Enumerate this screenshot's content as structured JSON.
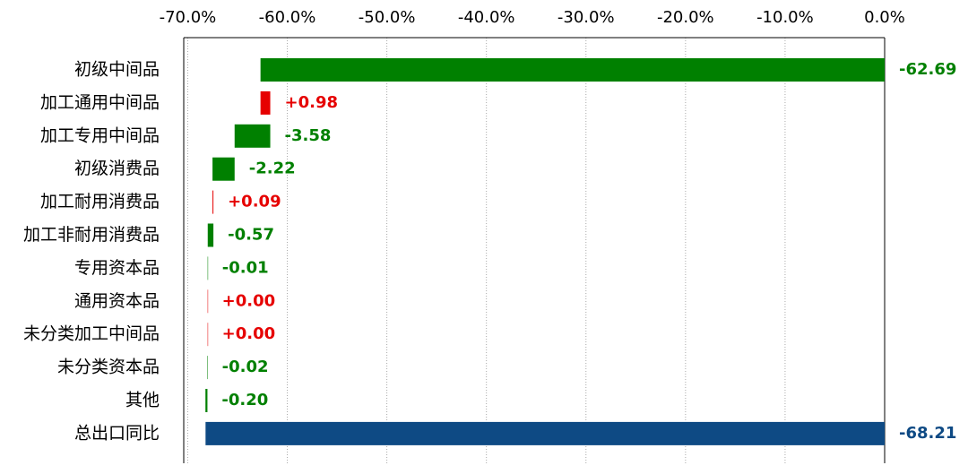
{
  "chart_data": {
    "type": "waterfall",
    "categories": [
      "初级中间品",
      "加工通用中间品",
      "加工专用中间品",
      "初级消费品",
      "加工耐用消费品",
      "加工非耐用消费品",
      "专用资本品",
      "通用资本品",
      "未分类加工中间品",
      "未分类资本品",
      "其他"
    ],
    "values": [
      -62.69,
      0.98,
      -3.58,
      -2.22,
      0.09,
      -0.57,
      -0.01,
      0.0,
      0.0,
      -0.02,
      -0.2
    ],
    "value_labels": [
      "-62.69",
      "+0.98",
      "-3.58",
      "-2.22",
      "+0.09",
      "-0.57",
      "-0.01",
      "+0.00",
      "+0.00",
      "-0.02",
      "-0.20"
    ],
    "increase_color": "#e60000",
    "decrease_color": "#008000",
    "total": {
      "category": "总出口同比",
      "value": -68.21,
      "label": "-68.21",
      "color": "#0e4a84"
    },
    "xlim": [
      -70.4,
      0
    ],
    "xticks": [
      {
        "value": -70,
        "label": "-70.0%"
      },
      {
        "value": -60,
        "label": "-60.0%"
      },
      {
        "value": -50,
        "label": "-50.0%"
      },
      {
        "value": -40,
        "label": "-40.0%"
      },
      {
        "value": -30,
        "label": "-30.0%"
      },
      {
        "value": -20,
        "label": "-20.0%"
      },
      {
        "value": -10,
        "label": "-10.0%"
      },
      {
        "value": 0,
        "label": "0.0%"
      }
    ],
    "grid": true
  }
}
